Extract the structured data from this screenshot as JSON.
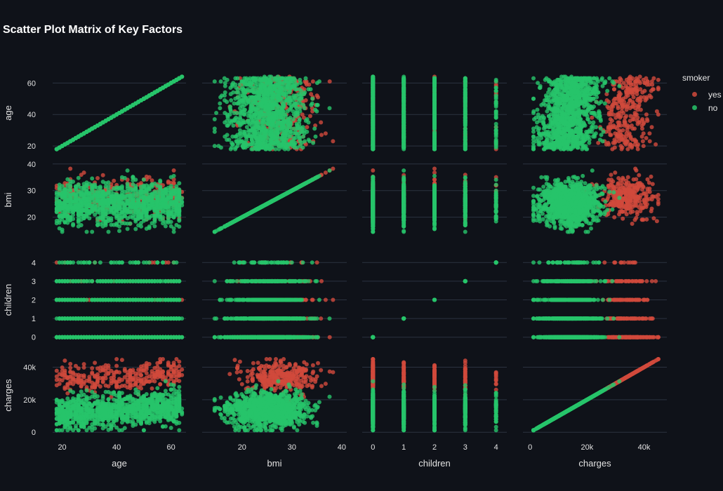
{
  "chart_data": {
    "type": "scatter",
    "title": "Scatter Plot Matrix of Key Factors",
    "dimensions": [
      {
        "name": "age",
        "label": "age",
        "range": [
          16.5,
          65.5
        ],
        "ticks": [
          20,
          40,
          60
        ],
        "tick_labels": [
          "20",
          "40",
          "60"
        ]
      },
      {
        "name": "bmi",
        "label": "bmi",
        "range": [
          12,
          41
        ],
        "ticks": [
          20,
          30,
          40
        ],
        "tick_labels": [
          "20",
          "30",
          "40"
        ]
      },
      {
        "name": "children",
        "label": "children",
        "range": [
          -0.35,
          4.35
        ],
        "ticks": [
          0,
          1,
          2,
          3,
          4
        ],
        "tick_labels": [
          "0",
          "1",
          "2",
          "3",
          "4"
        ]
      },
      {
        "name": "charges",
        "label": "charges",
        "range": [
          -2500,
          48000
        ],
        "ticks": [
          0,
          20000,
          40000
        ],
        "tick_labels": [
          "0",
          "20k",
          "40k"
        ]
      }
    ],
    "legend": {
      "title": "smoker",
      "position": "top-right",
      "entries": [
        {
          "name": "yes",
          "color": "#d14a3c"
        },
        {
          "name": "no",
          "color": "#27c46a"
        }
      ]
    },
    "series": [
      {
        "name": "yes",
        "color": "#d14a3c",
        "count": 300,
        "approx_distribution": {
          "age": [
            18,
            64
          ],
          "bmi_mean": 27.5,
          "bmi_sd": 3.5,
          "charges_mean": 34000,
          "charges_sd": 4500
        }
      },
      {
        "name": "no",
        "color": "#27c46a",
        "count": 1100,
        "approx_distribution": {
          "age": [
            18,
            64
          ],
          "bmi_mean": 25,
          "bmi_sd": 4,
          "charges_mean": 13500,
          "charges_sd": 5000
        }
      }
    ],
    "grid": true,
    "diagonal": "identity scatter"
  }
}
